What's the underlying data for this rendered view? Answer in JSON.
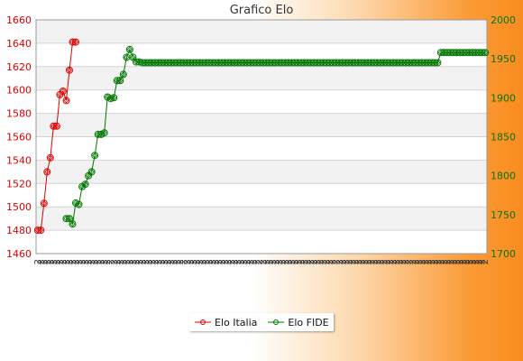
{
  "chart_data": {
    "type": "line",
    "title": "Grafico Elo",
    "grid": true,
    "legend_position": "bottom-center",
    "y_left": {
      "min": 1460,
      "max": 1660,
      "step": 20,
      "color": "#dd0000",
      "ticks": [
        "1460",
        "1480",
        "1500",
        "1520",
        "1540",
        "1560",
        "1580",
        "1600",
        "1620",
        "1640",
        "1660"
      ]
    },
    "y_right": {
      "min": 1700,
      "max": 2000,
      "step": 50,
      "color": "#007700",
      "ticks": [
        "1700",
        "1750",
        "1800",
        "1850",
        "1900",
        "1950",
        "2000"
      ]
    },
    "x_tick_label": "2",
    "x_tick_count": 142,
    "series": [
      {
        "name": "Elo Italia",
        "axis": "left",
        "color": "#dd0000",
        "x": [
          0,
          1,
          2,
          3,
          4,
          5,
          6,
          7,
          8,
          9,
          10,
          11,
          12
        ],
        "values": [
          1480,
          1480,
          1503,
          1530,
          1542,
          1569,
          1569,
          1596,
          1599,
          1591,
          1617,
          1641,
          1641
        ]
      },
      {
        "name": "Elo FIDE",
        "axis": "right",
        "color": "#007700",
        "x": [
          9,
          10,
          11,
          12,
          13,
          14,
          15,
          16,
          17,
          18,
          19,
          20,
          21,
          22,
          23,
          24,
          25,
          26,
          27,
          28,
          29,
          30,
          31,
          32,
          33,
          34,
          35,
          36,
          37,
          38,
          39,
          40,
          41,
          42,
          43,
          44,
          45,
          46,
          47,
          48,
          49,
          50,
          51,
          52,
          53,
          54,
          55,
          56,
          57,
          58,
          59,
          60,
          61,
          62,
          63,
          64,
          65,
          66,
          67,
          68,
          69,
          70,
          71,
          72,
          73,
          74,
          75,
          76,
          77,
          78,
          79,
          80,
          81,
          82,
          83,
          84,
          85,
          86,
          87,
          88,
          89,
          90,
          91,
          92,
          93,
          94,
          95,
          96,
          97,
          98,
          99,
          100,
          101,
          102,
          103,
          104,
          105,
          106,
          107,
          108,
          109,
          110,
          111,
          112,
          113,
          114,
          115,
          116,
          117,
          118,
          119,
          120,
          121,
          122,
          123,
          124,
          125,
          126,
          127,
          128,
          129,
          130,
          131,
          132,
          133,
          134,
          135,
          136,
          137,
          138,
          139,
          140,
          141
        ],
        "values": [
          1745,
          1745,
          1738,
          1765,
          1763,
          1786,
          1789,
          1800,
          1805,
          1826,
          1853,
          1853,
          1855,
          1901,
          1899,
          1900,
          1922,
          1922,
          1930,
          1952,
          1962,
          1952,
          1946,
          1946,
          1945,
          1945,
          1945,
          1945,
          1945,
          1945,
          1945,
          1945,
          1945,
          1945,
          1945,
          1945,
          1945,
          1945,
          1945,
          1945,
          1945,
          1945,
          1945,
          1945,
          1945,
          1945,
          1945,
          1945,
          1945,
          1945,
          1945,
          1945,
          1945,
          1945,
          1945,
          1945,
          1945,
          1945,
          1945,
          1945,
          1945,
          1945,
          1945,
          1945,
          1945,
          1945,
          1945,
          1945,
          1945,
          1945,
          1945,
          1945,
          1945,
          1945,
          1945,
          1945,
          1945,
          1945,
          1945,
          1945,
          1945,
          1945,
          1945,
          1945,
          1945,
          1945,
          1945,
          1945,
          1945,
          1945,
          1945,
          1945,
          1945,
          1945,
          1945,
          1945,
          1945,
          1945,
          1945,
          1945,
          1945,
          1945,
          1945,
          1945,
          1945,
          1945,
          1945,
          1945,
          1945,
          1945,
          1945,
          1945,
          1945,
          1945,
          1945,
          1945,
          1945,
          1945,
          1958,
          1958,
          1958,
          1958,
          1958,
          1958,
          1958,
          1958,
          1958,
          1958,
          1958,
          1958,
          1958,
          1958,
          1958
        ]
      }
    ]
  }
}
